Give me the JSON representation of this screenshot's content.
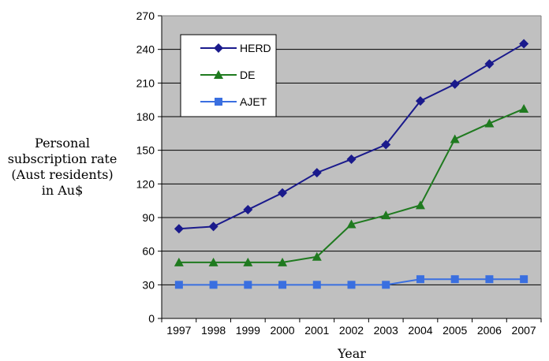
{
  "chart_data": {
    "type": "line",
    "title": "",
    "xlabel": "Year",
    "ylabel_lines": [
      "Personal",
      "subscription rate",
      "(Aust residents)",
      "in Au$"
    ],
    "x": [
      "1997",
      "1998",
      "1999",
      "2000",
      "2001",
      "2002",
      "2003",
      "2004",
      "2005",
      "2006",
      "2007"
    ],
    "ylim": [
      0,
      270
    ],
    "yticks": [
      0,
      30,
      60,
      90,
      120,
      150,
      180,
      210,
      240,
      270
    ],
    "grid": "horizontal",
    "background": "#c0c0c0",
    "legend_position": "top-left",
    "series": [
      {
        "name": "HERD",
        "color": "#1a1a8c",
        "marker": "diamond",
        "values": [
          80,
          82,
          97,
          112,
          130,
          142,
          155,
          194,
          209,
          227,
          245
        ]
      },
      {
        "name": "DE",
        "color": "#1f7a1f",
        "marker": "triangle",
        "values": [
          50,
          50,
          50,
          50,
          55,
          84,
          92,
          101,
          160,
          174,
          187
        ]
      },
      {
        "name": "AJET",
        "color": "#3a6fe0",
        "marker": "square",
        "values": [
          30,
          30,
          30,
          30,
          30,
          30,
          30,
          35,
          35,
          35,
          35
        ]
      }
    ]
  }
}
